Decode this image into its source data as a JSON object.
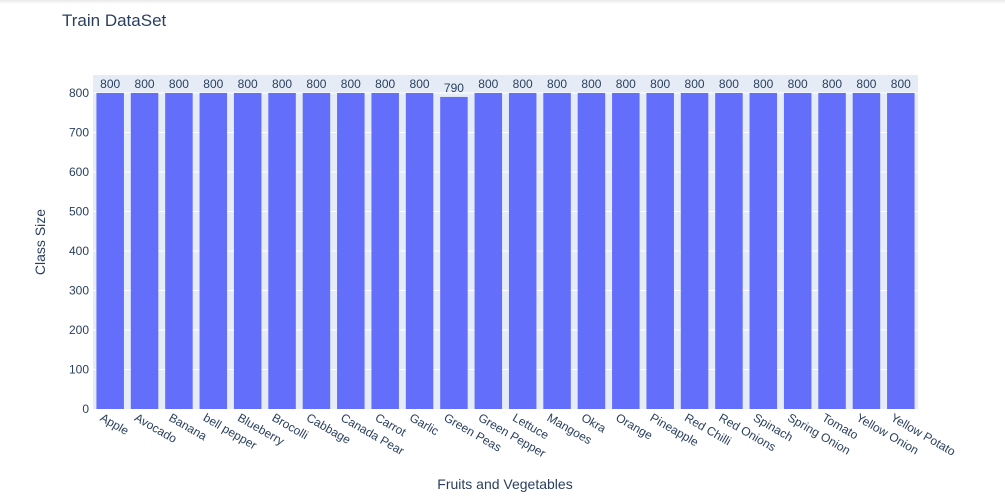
{
  "chart_data": {
    "type": "bar",
    "title": "Train DataSet",
    "xlabel": "Fruits and Vegetables",
    "ylabel": "Class Size",
    "categories": [
      "Apple",
      "Avocado",
      "Banana",
      "bell pepper",
      "Blueberry",
      "Brocolli",
      "Cabbage",
      "Canada Pear",
      "Carrot",
      "Garlic",
      "Green Peas",
      "Green Pepper",
      "Lettuce",
      "Mangoes",
      "Okra",
      "Orange",
      "Pineapple",
      "Red Chilli",
      "Red Onions",
      "Spinach",
      "Spring Onion",
      "Tomato",
      "Yellow Onion",
      "Yellow Potato"
    ],
    "values": [
      800,
      800,
      800,
      800,
      800,
      800,
      800,
      800,
      800,
      800,
      790,
      800,
      800,
      800,
      800,
      800,
      800,
      800,
      800,
      800,
      800,
      800,
      800,
      800
    ],
    "bar_labels": [
      "800",
      "800",
      "800",
      "800",
      "800",
      "800",
      "800",
      "800",
      "800",
      "800",
      "790",
      "800",
      "800",
      "800",
      "800",
      "800",
      "800",
      "800",
      "800",
      "800",
      "800",
      "800",
      "800",
      "800"
    ],
    "ylim": [
      0,
      800
    ],
    "yticks": [
      0,
      100,
      200,
      300,
      400,
      500,
      600,
      700,
      800
    ],
    "grid": true,
    "bar_color": "#636efa",
    "plot_bg": "#e5ecf6"
  }
}
